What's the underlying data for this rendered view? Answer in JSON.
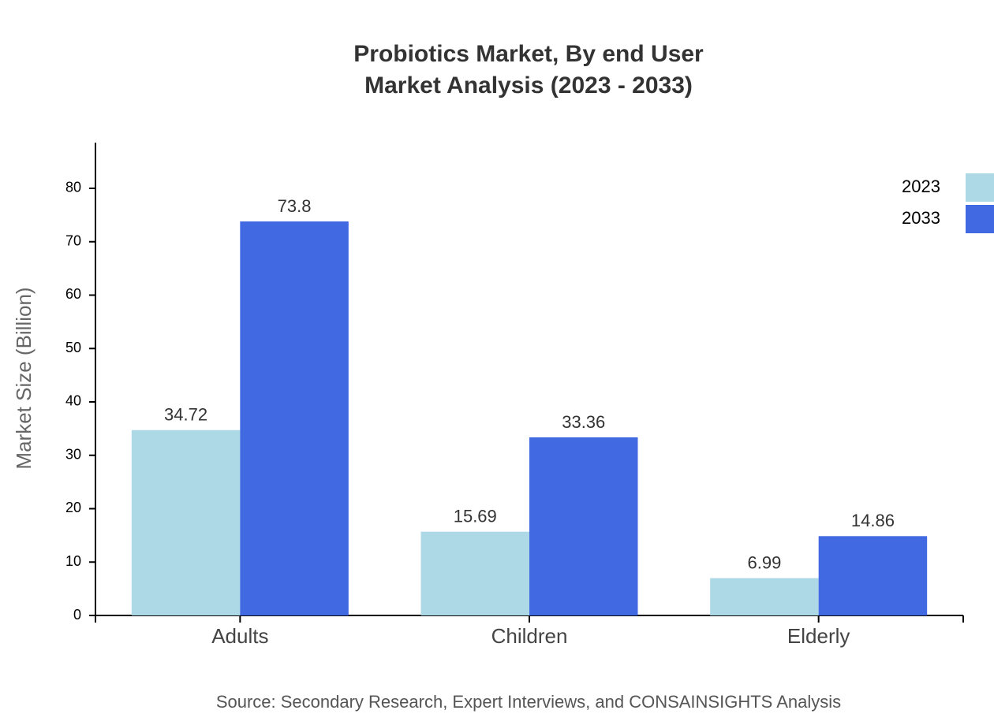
{
  "chart_data": {
    "type": "bar",
    "title": "Probiotics Market, By end User",
    "subtitle": "Market Analysis (2023 - 2033)",
    "y_label": "Market Size (Billion)",
    "source": "Source: Secondary Research, Expert Interviews, and CONSAINSIGHTS Analysis",
    "categories": [
      "Adults",
      "Children",
      "Elderly"
    ],
    "series": [
      {
        "name": "2023",
        "color": "#add8e6",
        "values": [
          34.72,
          15.69,
          6.99
        ]
      },
      {
        "name": "2033",
        "color": "#4169e1",
        "values": [
          73.8,
          33.36,
          14.86
        ]
      }
    ],
    "ylim": [
      0,
      88.56
    ],
    "yticks": [
      0,
      10,
      20,
      30,
      40,
      50,
      60,
      70,
      80
    ],
    "grid": false,
    "legend": "top-right"
  }
}
